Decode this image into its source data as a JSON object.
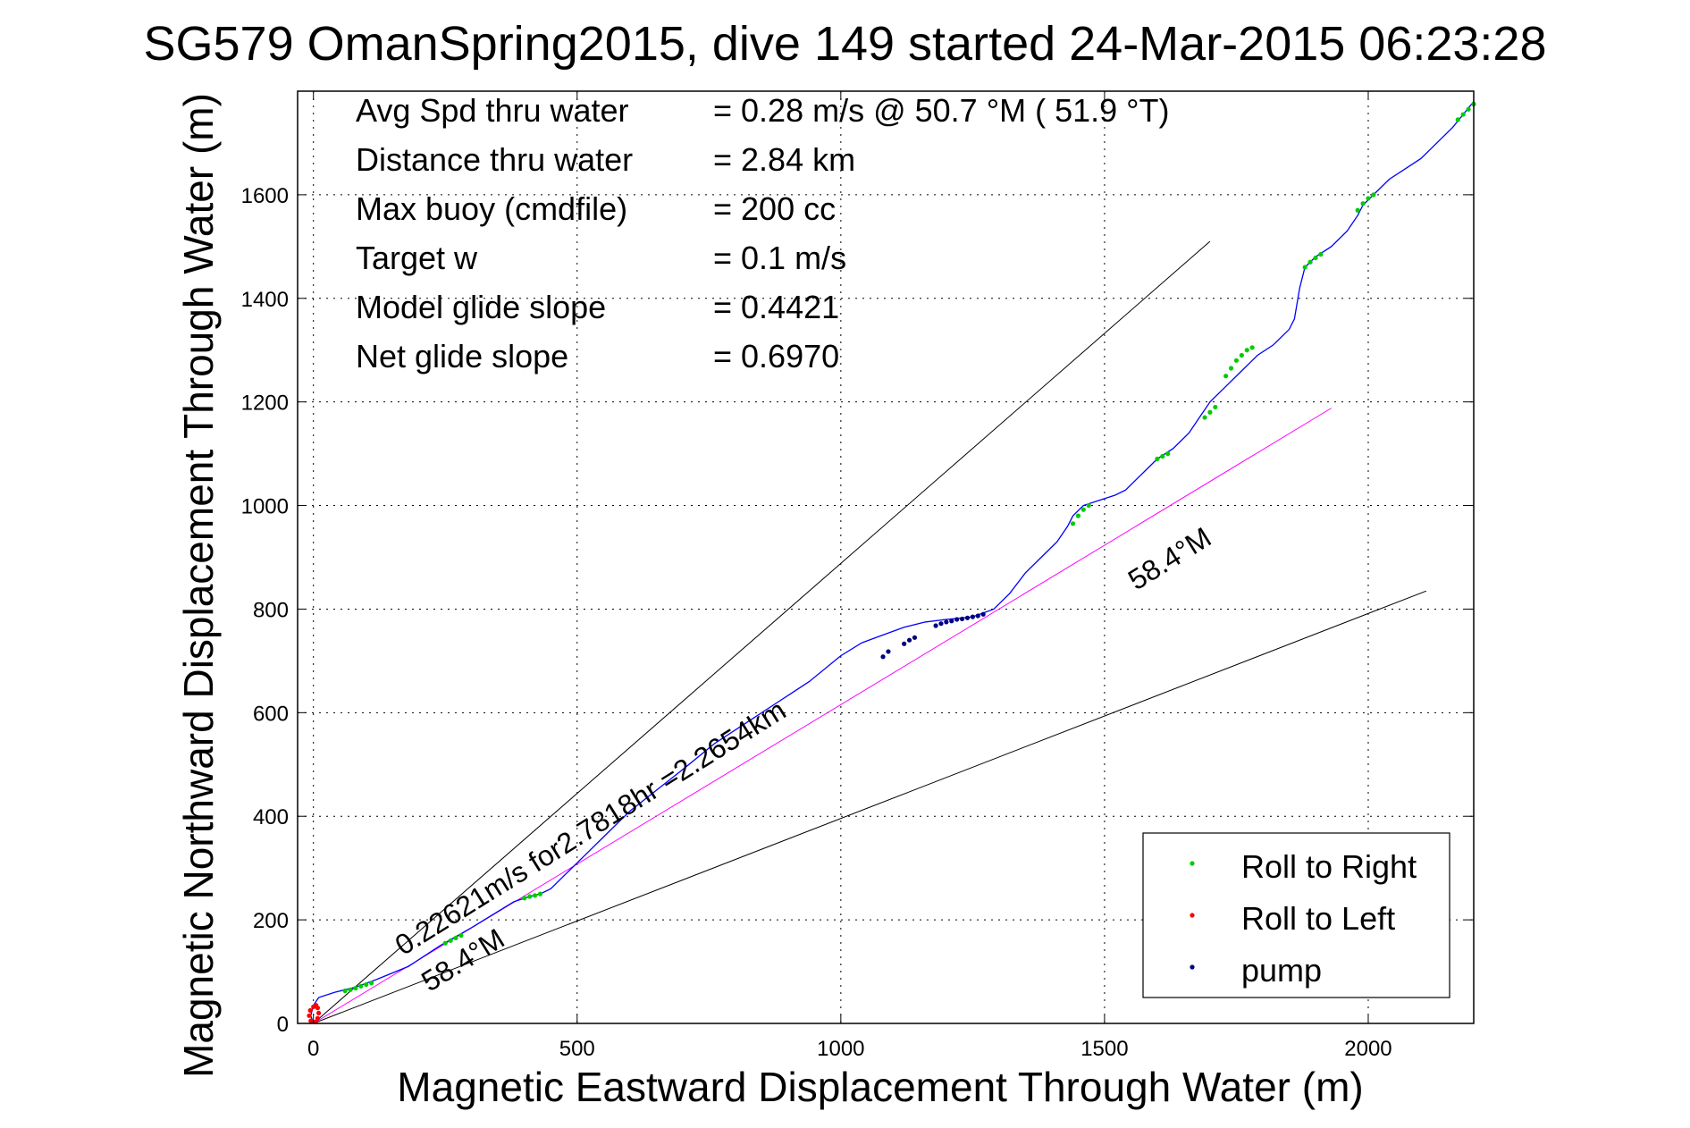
{
  "chart_data": {
    "type": "line",
    "title": "SG579 OmanSpring2015, dive 149 started 24-Mar-2015 06:23:28",
    "xlabel": "Magnetic Eastward Displacement Through Water (m)",
    "ylabel": "Magnetic Northward Displacement Through Water (m)",
    "xlim": [
      -30,
      2200
    ],
    "ylim": [
      0,
      1800
    ],
    "xticks": [
      0,
      500,
      1000,
      1500,
      2000
    ],
    "yticks": [
      0,
      200,
      400,
      600,
      800,
      1000,
      1200,
      1400,
      1600
    ],
    "grid": true,
    "info": [
      {
        "label": "Avg Spd thru water",
        "value": "=  0.28 m/s @  50.7 °M ( 51.9 °T)"
      },
      {
        "label": "Distance thru water",
        "value": "=  2.84 km"
      },
      {
        "label": "Max buoy (cmdfile)",
        "value": "= 200 cc"
      },
      {
        "label": "Target w",
        "value": "= 0.1 m/s"
      },
      {
        "label": "Model glide slope",
        "value": "= 0.4421"
      },
      {
        "label": "Net glide slope",
        "value": "= 0.6970"
      }
    ],
    "guide_lines": [
      {
        "from": [
          0,
          0
        ],
        "to": [
          1700,
          1510
        ],
        "color": "#000000"
      },
      {
        "from": [
          0,
          0
        ],
        "to": [
          2110,
          835
        ],
        "color": "#000000"
      },
      {
        "from": [
          0,
          0
        ],
        "to": [
          1930,
          1188
        ],
        "color": "#ff00ff"
      }
    ],
    "annotations": [
      {
        "text": "58.4°M",
        "x": 1560,
        "y": 835,
        "angle": 32
      },
      {
        "text": "58.4°M",
        "x": 220,
        "y": 60,
        "angle": 32
      },
      {
        "text": "0.22621m/s for2.7818hr =2.2654km",
        "x": 170,
        "y": 130,
        "angle": 32
      }
    ],
    "series": [
      {
        "name": "track",
        "color": "#0000ff",
        "x": [
          0,
          -5,
          0,
          10,
          40,
          80,
          120,
          180,
          240,
          300,
          340,
          380,
          410,
          430,
          450,
          480,
          520,
          560,
          600,
          650,
          700,
          760,
          820,
          880,
          940,
          1000,
          1040,
          1080,
          1120,
          1160,
          1200,
          1250,
          1290,
          1320,
          1350,
          1380,
          1410,
          1430,
          1440,
          1460,
          1490,
          1520,
          1540,
          1560,
          1580,
          1600,
          1630,
          1660,
          1680,
          1700,
          1730,
          1760,
          1790,
          1820,
          1850,
          1860,
          1870,
          1880,
          1900,
          1930,
          1960,
          1980,
          1990,
          2010,
          2040,
          2070,
          2100,
          2130,
          2160,
          2200
        ],
        "y": [
          0,
          15,
          35,
          50,
          60,
          70,
          85,
          110,
          150,
          185,
          210,
          235,
          245,
          250,
          260,
          290,
          330,
          370,
          410,
          450,
          490,
          540,
          580,
          620,
          660,
          710,
          735,
          750,
          765,
          775,
          780,
          785,
          800,
          830,
          870,
          900,
          930,
          960,
          980,
          1000,
          1010,
          1020,
          1030,
          1050,
          1070,
          1090,
          1110,
          1140,
          1170,
          1200,
          1230,
          1260,
          1290,
          1310,
          1340,
          1360,
          1420,
          1460,
          1480,
          1500,
          1530,
          1560,
          1580,
          1600,
          1630,
          1650,
          1670,
          1700,
          1730,
          1780
        ]
      },
      {
        "name": "Roll to Right",
        "color": "#00cc00",
        "x": [
          60,
          70,
          80,
          90,
          100,
          110,
          250,
          260,
          270,
          280,
          400,
          410,
          420,
          430,
          1440,
          1450,
          1460,
          1470,
          1600,
          1610,
          1620,
          1690,
          1700,
          1710,
          1730,
          1740,
          1750,
          1760,
          1770,
          1780,
          1880,
          1890,
          1900,
          1910,
          1980,
          1990,
          2000,
          2010,
          2170,
          2180,
          2190,
          2200
        ],
        "y": [
          63,
          65,
          68,
          72,
          75,
          78,
          155,
          160,
          165,
          170,
          242,
          245,
          247,
          250,
          965,
          980,
          992,
          1000,
          1090,
          1095,
          1100,
          1170,
          1180,
          1190,
          1250,
          1265,
          1280,
          1290,
          1300,
          1305,
          1460,
          1470,
          1478,
          1485,
          1570,
          1583,
          1593,
          1600,
          1745,
          1755,
          1765,
          1775
        ]
      },
      {
        "name": "Roll to Left",
        "color": "#ff0000",
        "x": [
          -5,
          -8,
          -6,
          0,
          5,
          8,
          10,
          8,
          4
        ],
        "y": [
          5,
          15,
          25,
          32,
          35,
          30,
          20,
          10,
          3
        ]
      },
      {
        "name": "pump",
        "color": "#000080",
        "x": [
          1080,
          1090,
          1120,
          1130,
          1140,
          1180,
          1190,
          1200,
          1210,
          1220,
          1230,
          1240,
          1250,
          1260,
          1270
        ],
        "y": [
          708,
          718,
          733,
          740,
          745,
          768,
          772,
          775,
          777,
          780,
          781,
          783,
          785,
          787,
          790
        ]
      }
    ],
    "legend": {
      "position": "bottom-right",
      "entries": [
        {
          "label": "Roll to Right",
          "color": "#00cc00"
        },
        {
          "label": "Roll to Left",
          "color": "#ff0000"
        },
        {
          "label": "pump",
          "color": "#000080"
        }
      ]
    }
  }
}
